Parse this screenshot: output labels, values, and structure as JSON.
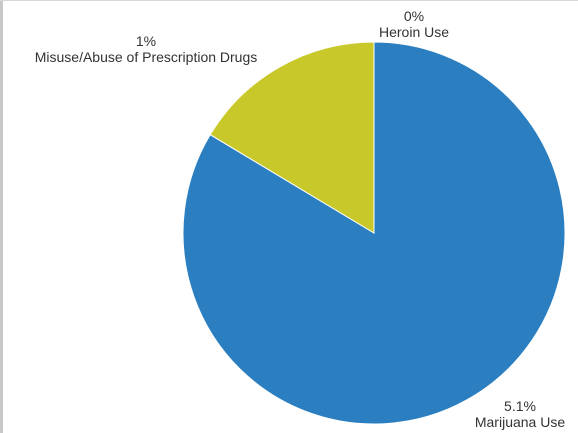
{
  "chart_data": {
    "type": "pie",
    "slices": [
      {
        "label": "Marijuana Use",
        "value_label": "5.1%",
        "value": 5.1,
        "color": "#2b7fc0"
      },
      {
        "label": "Misuse/Abuse of Prescription Drugs",
        "value_label": "1%",
        "value": 1,
        "color": "#c9c82a"
      },
      {
        "label": "Heroin Use",
        "value_label": "0%",
        "value": 0,
        "color": "#8f8f8f"
      }
    ]
  }
}
